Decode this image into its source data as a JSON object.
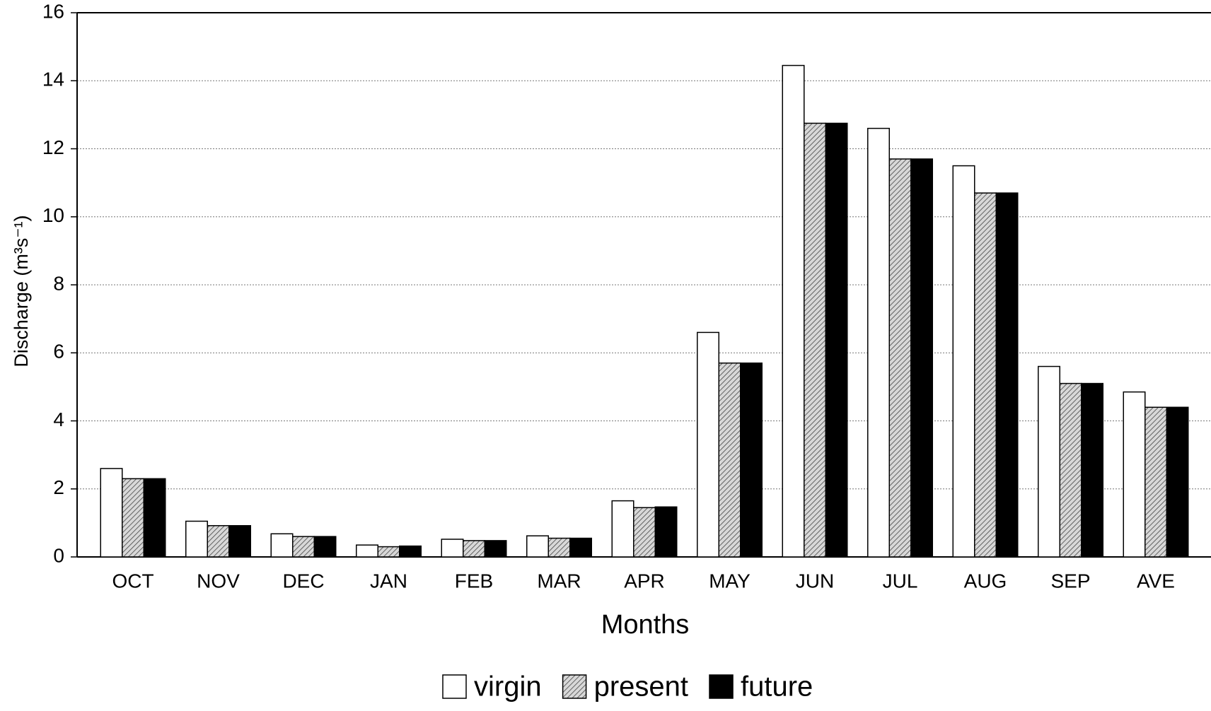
{
  "chart_data": {
    "type": "bar",
    "xlabel": "Months",
    "ylabel": "Discharge (m³s⁻¹)",
    "categories": [
      "OCT",
      "NOV",
      "DEC",
      "JAN",
      "FEB",
      "MAR",
      "APR",
      "MAY",
      "JUN",
      "JUL",
      "AUG",
      "SEP",
      "AVE"
    ],
    "series": [
      {
        "name": "virgin",
        "color": "#ffffff",
        "values": [
          2.6,
          1.05,
          0.68,
          0.35,
          0.52,
          0.62,
          1.65,
          6.6,
          14.45,
          12.6,
          11.5,
          5.6,
          4.85
        ]
      },
      {
        "name": "present",
        "color": "hatch",
        "values": [
          2.3,
          0.92,
          0.6,
          0.3,
          0.48,
          0.55,
          1.45,
          5.7,
          12.75,
          11.7,
          10.7,
          5.1,
          4.4
        ]
      },
      {
        "name": "future",
        "color": "#000000",
        "values": [
          2.3,
          0.92,
          0.6,
          0.32,
          0.48,
          0.55,
          1.47,
          5.7,
          12.75,
          11.7,
          10.7,
          5.1,
          4.4
        ]
      }
    ],
    "ylim": [
      0,
      16
    ],
    "yticks": [
      0,
      2,
      4,
      6,
      8,
      10,
      12,
      14,
      16
    ],
    "grid": true
  }
}
